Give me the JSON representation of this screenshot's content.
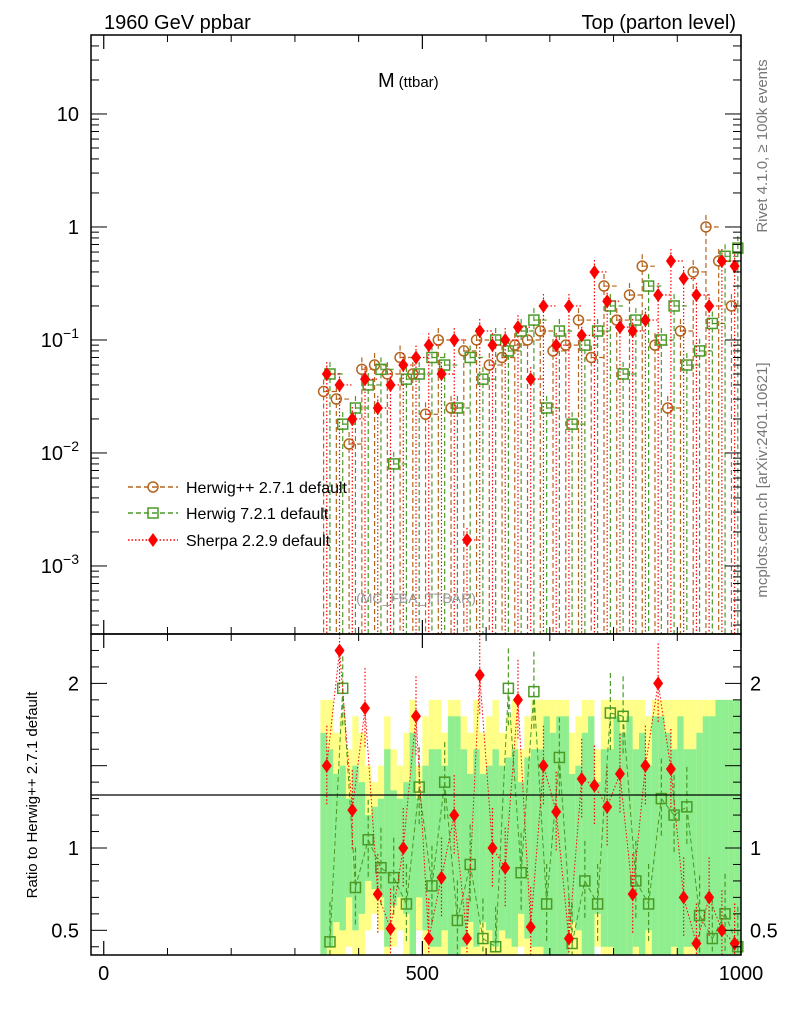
{
  "header": {
    "left": "1960 GeV ppbar",
    "right": "Top (parton level)"
  },
  "side_labels": {
    "top": "Rivet 4.1.0, ≥ 100k events",
    "bottom": "mcplots.cern.ch [arXiv:2401.10621]"
  },
  "analysis_tag": "(MC_FBA_TTBAR)",
  "chart_data": {
    "type": "scatter",
    "title": "M",
    "title_sub": "(ttbar)",
    "main": {
      "yscale": "log",
      "ylim": [
        0.00025,
        50
      ],
      "yticks": [
        {
          "v": 10,
          "base": "10",
          "exp": ""
        },
        {
          "v": 1,
          "base": "1",
          "exp": ""
        },
        {
          "v": 0.1,
          "base": "10",
          "exp": "−1"
        },
        {
          "v": 0.01,
          "base": "10",
          "exp": "−2"
        },
        {
          "v": 0.001,
          "base": "10",
          "exp": "−3"
        }
      ]
    },
    "ratio": {
      "ylabel": "Ratio to Herwig++ 2.7.1 default",
      "ylim": [
        0.35,
        2.3
      ],
      "yticks": [
        {
          "v": 2,
          "label": "2"
        },
        {
          "v": 1,
          "label": "1"
        },
        {
          "v": 0.5,
          "label": "0.5"
        }
      ]
    },
    "x": {
      "xlim": [
        -20,
        1000
      ],
      "ticks": [
        {
          "v": 0,
          "label": "0"
        },
        {
          "v": 500,
          "label": "500"
        },
        {
          "v": 1000,
          "label": "1000"
        }
      ]
    },
    "series": [
      {
        "name": "Herwig++ 2.7.1 default",
        "color": "#b5651d",
        "marker": "circle",
        "x": [
          345,
          365,
          385,
          405,
          425,
          445,
          465,
          485,
          505,
          525,
          545,
          565,
          585,
          605,
          625,
          645,
          665,
          685,
          705,
          725,
          745,
          765,
          785,
          805,
          825,
          845,
          865,
          885,
          905,
          925,
          945,
          965,
          985
        ],
        "y": [
          0.035,
          0.03,
          0.012,
          0.055,
          0.06,
          0.05,
          0.07,
          0.05,
          0.022,
          0.1,
          0.025,
          0.08,
          0.1,
          0.06,
          0.07,
          0.09,
          0.1,
          0.12,
          0.08,
          0.09,
          0.15,
          0.07,
          0.3,
          0.15,
          0.25,
          0.45,
          0.09,
          0.025,
          0.12,
          0.4,
          1.0,
          0.5,
          0.2
        ]
      },
      {
        "name": "Herwig 7.2.1 default",
        "color": "#4a9a26",
        "marker": "square",
        "x": [
          355,
          375,
          395,
          415,
          435,
          455,
          475,
          495,
          515,
          535,
          555,
          575,
          595,
          615,
          635,
          655,
          675,
          695,
          715,
          735,
          755,
          775,
          795,
          815,
          835,
          855,
          875,
          895,
          915,
          935,
          955,
          975,
          995
        ],
        "y": [
          0.05,
          0.018,
          0.025,
          0.04,
          0.055,
          0.008,
          0.045,
          0.05,
          0.07,
          0.06,
          0.025,
          0.07,
          0.045,
          0.1,
          0.08,
          0.12,
          0.15,
          0.025,
          0.12,
          0.018,
          0.09,
          0.12,
          0.2,
          0.05,
          0.15,
          0.3,
          0.1,
          0.2,
          0.06,
          0.08,
          0.14,
          0.55,
          0.65
        ]
      },
      {
        "name": "Sherpa 2.2.9 default",
        "color": "#ff0000",
        "marker": "diamond",
        "x": [
          350,
          370,
          390,
          410,
          430,
          450,
          470,
          490,
          510,
          530,
          550,
          570,
          590,
          610,
          630,
          650,
          670,
          690,
          710,
          730,
          750,
          770,
          790,
          810,
          830,
          850,
          870,
          890,
          910,
          930,
          950,
          970,
          990
        ],
        "y": [
          0.05,
          0.04,
          0.02,
          0.045,
          0.025,
          0.04,
          0.06,
          0.07,
          0.09,
          0.05,
          0.1,
          0.0017,
          0.12,
          0.09,
          0.1,
          0.13,
          0.045,
          0.2,
          0.09,
          0.2,
          0.11,
          0.4,
          0.22,
          0.13,
          0.12,
          0.15,
          0.25,
          0.5,
          0.35,
          0.25,
          0.2,
          0.5,
          0.45
        ]
      }
    ],
    "ratio_series": [
      {
        "name": "Herwig 7.2.1 default",
        "x": [
          355,
          375,
          395,
          415,
          435,
          455,
          475,
          495,
          515,
          535,
          555,
          575,
          595,
          615,
          635,
          655,
          675,
          695,
          715,
          735,
          755,
          775,
          795,
          815,
          835,
          855,
          875,
          895,
          915,
          935,
          955,
          975,
          995
        ],
        "y": [
          0.43,
          1.97,
          0.76,
          1.05,
          0.88,
          0.82,
          0.66,
          1.37,
          0.77,
          1.4,
          0.56,
          0.9,
          0.45,
          0.4,
          1.97,
          0.85,
          1.95,
          0.66,
          1.55,
          0.42,
          0.8,
          0.66,
          1.82,
          1.8,
          0.8,
          0.66,
          1.3,
          1.2,
          1.25,
          0.59,
          0.45,
          0.6,
          0.4
        ]
      },
      {
        "name": "Sherpa 2.2.9 default",
        "x": [
          350,
          370,
          390,
          410,
          430,
          450,
          470,
          490,
          510,
          530,
          550,
          570,
          590,
          610,
          630,
          650,
          670,
          690,
          710,
          730,
          750,
          770,
          790,
          810,
          830,
          850,
          870,
          890,
          910,
          930,
          950,
          970,
          990
        ],
        "y": [
          1.5,
          2.2,
          1.23,
          1.85,
          0.72,
          0.51,
          1.0,
          1.8,
          0.45,
          0.82,
          1.2,
          0.45,
          2.05,
          1.0,
          0.88,
          1.9,
          0.52,
          1.5,
          1.22,
          0.45,
          1.42,
          1.38,
          1.25,
          1.45,
          0.72,
          1.5,
          2.0,
          1.48,
          0.7,
          0.42,
          0.7,
          0.5,
          0.42
        ]
      }
    ],
    "bands": {
      "x_start": 340,
      "x_end": 1000,
      "bin_width": 10,
      "green_up": [
        0.7,
        0.6,
        0.45,
        0.5,
        0.3,
        0.5,
        0.4,
        0.2,
        0.25,
        0.3,
        0.6,
        0.35,
        0.3,
        0.4,
        0.7,
        0.3,
        0.5,
        0.6,
        0.6,
        0.5,
        0.8,
        0.8,
        0.6,
        0.45,
        0.6,
        0.45,
        0.5,
        0.6,
        0.5,
        0.55,
        0.6,
        0.4,
        0.55,
        0.6,
        0.6,
        0.8,
        0.7,
        0.8,
        0.8,
        0.45,
        0.5,
        0.7,
        0.8,
        0.4,
        0.6,
        0.6,
        0.8,
        0.7,
        0.8,
        0.6,
        0.7,
        0.5,
        0.8,
        0.8,
        0.7,
        0.6,
        0.8,
        0.6,
        0.6,
        0.7,
        0.8,
        0.8,
        0.9,
        0.9,
        0.9,
        0.9
      ],
      "green_dn": [
        0.7,
        0.6,
        0.45,
        0.5,
        0.3,
        0.5,
        0.4,
        0.2,
        0.25,
        0.3,
        0.6,
        0.35,
        0.3,
        0.4,
        0.7,
        0.3,
        0.5,
        0.6,
        0.6,
        0.5,
        0.8,
        0.8,
        0.6,
        0.45,
        0.6,
        0.45,
        0.5,
        0.6,
        0.5,
        0.55,
        0.6,
        0.4,
        0.55,
        0.6,
        0.6,
        0.8,
        0.7,
        0.8,
        0.8,
        0.45,
        0.5,
        0.7,
        0.8,
        0.4,
        0.6,
        0.6,
        0.8,
        0.7,
        0.8,
        0.6,
        0.7,
        0.5,
        0.8,
        0.8,
        0.7,
        0.6,
        0.8,
        0.6,
        0.6,
        0.7,
        0.8,
        0.8,
        0.9,
        0.9,
        0.9,
        0.9
      ],
      "yellow_up": [
        0.9,
        0.9,
        0.7,
        0.8,
        0.6,
        0.8,
        0.7,
        0.5,
        0.4,
        0.5,
        0.8,
        0.6,
        0.5,
        0.7,
        0.9,
        0.5,
        0.8,
        0.9,
        0.9,
        0.7,
        0.9,
        0.9,
        0.8,
        0.7,
        0.9,
        0.7,
        0.8,
        0.9,
        0.7,
        0.8,
        0.9,
        0.6,
        0.8,
        0.9,
        0.9,
        0.9,
        0.9,
        0.9,
        0.9,
        0.7,
        0.8,
        0.9,
        0.9,
        0.6,
        0.9,
        0.9,
        0.9,
        0.9,
        0.9,
        0.9,
        0.9,
        0.8,
        0.9,
        0.9,
        0.9,
        0.9,
        0.9,
        0.9,
        0.9,
        0.9,
        0.9,
        0.9,
        0.9,
        0.9,
        0.9,
        0.9
      ],
      "yellow_dn": [
        0.9,
        0.9,
        0.7,
        0.8,
        0.6,
        0.8,
        0.7,
        0.5,
        0.4,
        0.5,
        0.8,
        0.6,
        0.5,
        0.7,
        0.9,
        0.5,
        0.8,
        0.9,
        0.9,
        0.7,
        0.9,
        0.9,
        0.8,
        0.7,
        0.9,
        0.7,
        0.8,
        0.9,
        0.7,
        0.8,
        0.9,
        0.6,
        0.8,
        0.9,
        0.9,
        0.9,
        0.9,
        0.9,
        0.9,
        0.7,
        0.8,
        0.9,
        0.9,
        0.6,
        0.9,
        0.9,
        0.9,
        0.9,
        0.9,
        0.9,
        0.9,
        0.8,
        0.9,
        0.9,
        0.9,
        0.9,
        0.9,
        0.9,
        0.9,
        0.9,
        0.9,
        0.9,
        0.9,
        0.9,
        0.9,
        0.9
      ]
    }
  }
}
